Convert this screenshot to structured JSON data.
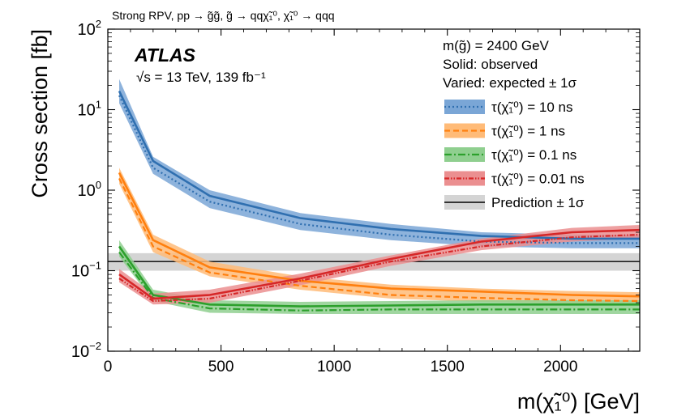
{
  "chart_data": {
    "type": "line",
    "title": "Strong RPV, pp → g̃g̃, g̃ → qqχ̃₁⁰, χ̃₁⁰ → qqq",
    "experiment_label": "ATLAS",
    "energy_label": "√s = 13 TeV, 139 fb⁻¹",
    "mass_label": "m(g̃) = 2400 GeV",
    "solid_label": "Solid: observed",
    "varied_label": "Varied: expected ± 1σ",
    "xlabel": "m(χ̃₁⁰) [GeV]",
    "ylabel": "Cross section [fb]",
    "xlim": [
      0,
      2350
    ],
    "ylim_log10": [
      -2,
      2
    ],
    "yscale": "log",
    "x_ticks": [
      0,
      500,
      1000,
      1500,
      2000
    ],
    "y_ticks": [
      {
        "exp": -2,
        "base": "10",
        "sup": "−2"
      },
      {
        "exp": -1,
        "base": "10",
        "sup": "−1"
      },
      {
        "exp": 0,
        "base": "10",
        "sup": "0"
      },
      {
        "exp": 1,
        "base": "10",
        "sup": "1"
      },
      {
        "exp": 2,
        "base": "10",
        "sup": "2"
      }
    ],
    "x": [
      50,
      200,
      450,
      850,
      1250,
      1650,
      2050,
      2350
    ],
    "series": [
      {
        "name": "τ(χ̃₁⁰) = 10 ns",
        "color": "#2f6fb0",
        "band_color": "#7aa6d6",
        "dash": "2,3",
        "observed": [
          17,
          2.3,
          0.85,
          0.45,
          0.33,
          0.27,
          0.25,
          0.25
        ],
        "expected": [
          15,
          1.9,
          0.72,
          0.38,
          0.28,
          0.23,
          0.22,
          0.22
        ],
        "band_low": [
          12,
          1.6,
          0.6,
          0.32,
          0.24,
          0.2,
          0.19,
          0.19
        ],
        "band_high": [
          24,
          2.6,
          1.0,
          0.52,
          0.38,
          0.3,
          0.28,
          0.28
        ]
      },
      {
        "name": "τ(χ̃₁⁰) = 1 ns",
        "color": "#ff7f0e",
        "band_color": "#ffbb78",
        "dash": "7,4",
        "observed": [
          1.65,
          0.24,
          0.11,
          0.075,
          0.06,
          0.055,
          0.05,
          0.048
        ],
        "expected": [
          1.4,
          0.2,
          0.095,
          0.065,
          0.05,
          0.046,
          0.043,
          0.042
        ],
        "band_low": [
          1.2,
          0.17,
          0.085,
          0.058,
          0.045,
          0.041,
          0.039,
          0.038
        ],
        "band_high": [
          1.9,
          0.28,
          0.13,
          0.085,
          0.067,
          0.06,
          0.056,
          0.054
        ]
      },
      {
        "name": "τ(χ̃₁⁰) = 0.1 ns",
        "color": "#2ca02c",
        "band_color": "#8fcf8f",
        "dash": "9,3,2,3",
        "observed": [
          0.2,
          0.05,
          0.038,
          0.036,
          0.037,
          0.038,
          0.038,
          0.038
        ],
        "expected": [
          0.17,
          0.046,
          0.034,
          0.032,
          0.033,
          0.033,
          0.033,
          0.033
        ],
        "band_low": [
          0.15,
          0.042,
          0.03,
          0.029,
          0.029,
          0.029,
          0.029,
          0.029
        ],
        "band_high": [
          0.24,
          0.058,
          0.043,
          0.041,
          0.042,
          0.043,
          0.043,
          0.043
        ]
      },
      {
        "name": "τ(χ̃₁⁰) = 0.01 ns",
        "color": "#d62728",
        "band_color": "#eb8f90",
        "dash": "6,2,1.5,2,1.5,2",
        "observed": [
          0.09,
          0.045,
          0.05,
          0.08,
          0.14,
          0.23,
          0.3,
          0.32
        ],
        "expected": [
          0.08,
          0.042,
          0.045,
          0.075,
          0.13,
          0.2,
          0.26,
          0.28
        ],
        "band_low": [
          0.072,
          0.038,
          0.04,
          0.066,
          0.115,
          0.18,
          0.23,
          0.25
        ],
        "band_high": [
          0.105,
          0.052,
          0.058,
          0.092,
          0.155,
          0.25,
          0.34,
          0.37
        ]
      }
    ],
    "prediction": {
      "name": "Prediction ± 1σ",
      "value": 0.13,
      "band_low": 0.1,
      "band_high": 0.165,
      "color": "#000000",
      "band_color": "#d4d4d4"
    },
    "legend_position": "top-right"
  }
}
